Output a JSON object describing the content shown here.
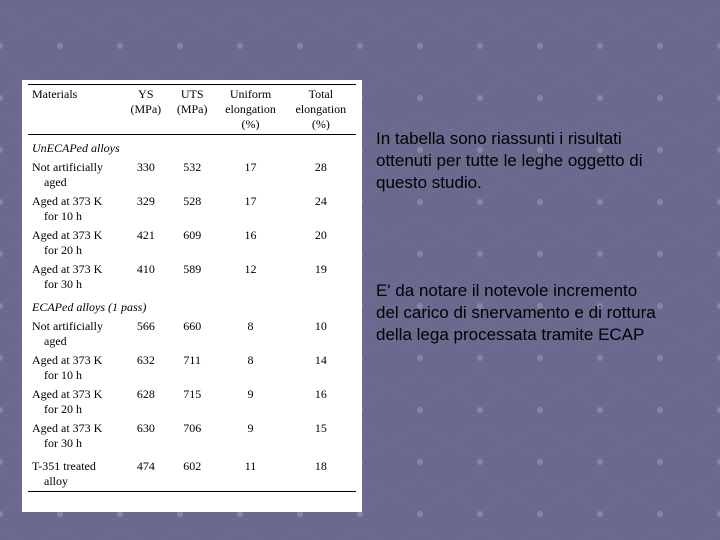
{
  "paragraphs": {
    "p1": "In tabella sono riassunti i risultati ottenuti per tutte le leghe oggetto di questo studio.",
    "p2": "E' da notare il notevole incremento del carico di snervamento e di rottura della lega processata tramite ECAP"
  },
  "table": {
    "headers": [
      {
        "l1": "Materials",
        "l2": ""
      },
      {
        "l1": "YS",
        "l2": "(MPa)"
      },
      {
        "l1": "UTS",
        "l2": "(MPa)"
      },
      {
        "l1": "Uniform",
        "l2": "elongation",
        "l3": "(%)"
      },
      {
        "l1": "Total",
        "l2": "elongation",
        "l3": "(%)"
      }
    ],
    "sections": [
      {
        "title": "UnECAPed alloys",
        "rows": [
          {
            "label_l1": "Not artificially",
            "label_l2": "aged",
            "ys": "330",
            "uts": "532",
            "ue": "17",
            "te": "28"
          },
          {
            "label_l1": "Aged at 373 K",
            "label_l2": "for 10 h",
            "ys": "329",
            "uts": "528",
            "ue": "17",
            "te": "24"
          },
          {
            "label_l1": "Aged at 373 K",
            "label_l2": "for 20 h",
            "ys": "421",
            "uts": "609",
            "ue": "16",
            "te": "20"
          },
          {
            "label_l1": "Aged at 373 K",
            "label_l2": "for 30 h",
            "ys": "410",
            "uts": "589",
            "ue": "12",
            "te": "19"
          }
        ]
      },
      {
        "title": "ECAPed alloys (1 pass)",
        "rows": [
          {
            "label_l1": "Not artificially",
            "label_l2": "aged",
            "ys": "566",
            "uts": "660",
            "ue": "8",
            "te": "10"
          },
          {
            "label_l1": "Aged at 373 K",
            "label_l2": "for 10 h",
            "ys": "632",
            "uts": "711",
            "ue": "8",
            "te": "14"
          },
          {
            "label_l1": "Aged at 373 K",
            "label_l2": "for 20 h",
            "ys": "628",
            "uts": "715",
            "ue": "9",
            "te": "16"
          },
          {
            "label_l1": "Aged at 373 K",
            "label_l2": "for 30 h",
            "ys": "630",
            "uts": "706",
            "ue": "9",
            "te": "15"
          }
        ]
      }
    ],
    "footer_row": {
      "label_l1": "T-351 treated",
      "label_l2": "alloy",
      "ys": "474",
      "uts": "602",
      "ue": "11",
      "te": "18"
    }
  },
  "colors": {
    "page_bg": "#6a6a8f",
    "table_bg": "#ffffff",
    "text": "#000000"
  }
}
